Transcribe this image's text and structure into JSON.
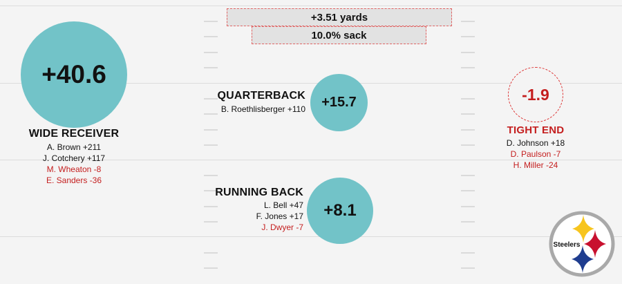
{
  "top_stats": {
    "yards": "+3.51 yards",
    "sack": "10.0% sack"
  },
  "wide_receiver": {
    "value": "+40.6",
    "title": "WIDE RECEIVER",
    "players": [
      "A. Brown +211",
      "J. Cotchery +117",
      "M. Wheaton -8",
      "E. Sanders -36"
    ]
  },
  "quarterback": {
    "value": "+15.7",
    "title": "QUARTERBACK",
    "players": [
      "B. Roethlisberger +110"
    ]
  },
  "running_back": {
    "value": "+8.1",
    "title": "RUNNING BACK",
    "players": [
      "L. Bell +47",
      "F. Jones +17",
      "J. Dwyer -7"
    ]
  },
  "tight_end": {
    "value": "-1.9",
    "title": "TIGHT END",
    "players": [
      "D. Johnson +18",
      "D. Paulson -7",
      "H. Miller -24"
    ]
  },
  "logo": {
    "text": "Steelers"
  },
  "colors": {
    "positive_fill": "#72c3c8",
    "negative_text": "#c41e1e",
    "background": "#f4f4f4",
    "logo_yellow": "#f7c51e",
    "logo_red": "#c8102e",
    "logo_blue": "#1f3d8f"
  }
}
